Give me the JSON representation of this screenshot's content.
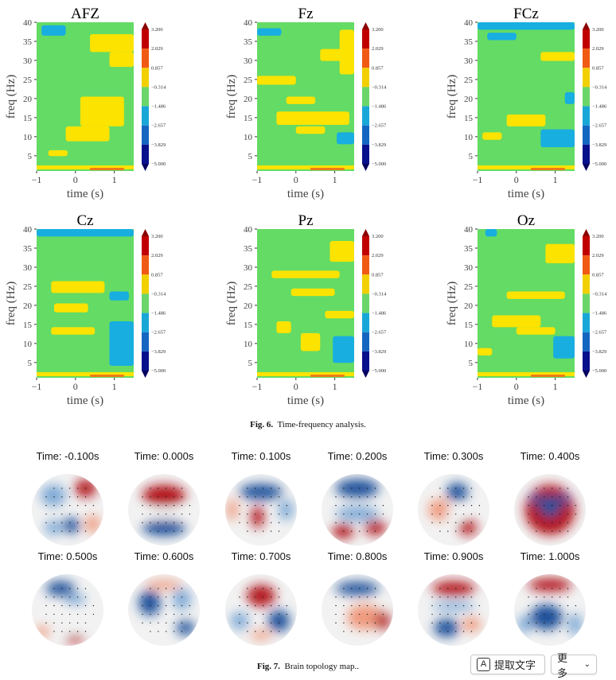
{
  "figure6": {
    "caption_label": "Fig. 6.",
    "caption_text": "Time-frequency analysis.",
    "chart_data": [
      {
        "type": "heatmap",
        "title": "AFZ",
        "xlabel": "time (s)",
        "ylabel": "freq (Hz)",
        "xlim": [
          -1,
          1.5
        ],
        "ylim": [
          1,
          40
        ],
        "xticks": [
          "−1",
          "0",
          "1"
        ],
        "yticks": [
          "5",
          "10",
          "15",
          "20",
          "25",
          "30",
          "35",
          "40"
        ]
      },
      {
        "type": "heatmap",
        "title": "Fz",
        "xlabel": "time (s)",
        "ylabel": "freq (Hz)",
        "xlim": [
          -1,
          1.5
        ],
        "ylim": [
          1,
          40
        ],
        "xticks": [
          "−1",
          "0",
          "1"
        ],
        "yticks": [
          "5",
          "10",
          "15",
          "20",
          "25",
          "30",
          "35",
          "40"
        ]
      },
      {
        "type": "heatmap",
        "title": "FCz",
        "xlabel": "time (s)",
        "ylabel": "freq (Hz)",
        "xlim": [
          -1,
          1.5
        ],
        "ylim": [
          1,
          40
        ],
        "xticks": [
          "−1",
          "0",
          "1"
        ],
        "yticks": [
          "5",
          "10",
          "15",
          "20",
          "25",
          "30",
          "35",
          "40"
        ]
      },
      {
        "type": "heatmap",
        "title": "Cz",
        "xlabel": "time (s)",
        "ylabel": "freq (Hz)",
        "xlim": [
          -1,
          1.5
        ],
        "ylim": [
          1,
          40
        ],
        "xticks": [
          "−1",
          "0",
          "1"
        ],
        "yticks": [
          "5",
          "10",
          "15",
          "20",
          "25",
          "30",
          "35",
          "40"
        ]
      },
      {
        "type": "heatmap",
        "title": "Pz",
        "xlabel": "time (s)",
        "ylabel": "freq (Hz)",
        "xlim": [
          -1,
          1.5
        ],
        "ylim": [
          1,
          40
        ],
        "xticks": [
          "−1",
          "0",
          "1"
        ],
        "yticks": [
          "5",
          "10",
          "15",
          "20",
          "25",
          "30",
          "35",
          "40"
        ]
      },
      {
        "type": "heatmap",
        "title": "Oz",
        "xlabel": "time (s)",
        "ylabel": "freq (Hz)",
        "xlim": [
          -1,
          1.5
        ],
        "ylim": [
          1,
          40
        ],
        "xticks": [
          "−1",
          "0",
          "1"
        ],
        "yticks": [
          "5",
          "10",
          "15",
          "20",
          "25",
          "30",
          "35",
          "40"
        ]
      }
    ],
    "colorbar": {
      "levels": [
        "3.200",
        "2.029",
        "0.857",
        "−0.314",
        "−1.486",
        "−2.657",
        "−3.829",
        "−5.000"
      ],
      "colors": [
        "#c00000",
        "#f05a14",
        "#f2d000",
        "#6ad66a",
        "#19a7d8",
        "#1566c0",
        "#08108c"
      ],
      "top_color": "#8b0000",
      "bottom_color": "#05005e"
    },
    "colors": {
      "green": "#64db64",
      "yellow": "#fde300",
      "cyan": "#18aee0",
      "orange": "#ee7a1a",
      "red": "#d21f10"
    }
  },
  "figure7": {
    "caption_label": "Fig. 7.",
    "caption_text": "Brain topology map..",
    "maps": [
      {
        "label": "Time: -0.100s",
        "scheme": "a"
      },
      {
        "label": "Time: 0.000s",
        "scheme": "b"
      },
      {
        "label": "Time: 0.100s",
        "scheme": "c"
      },
      {
        "label": "Time: 0.200s",
        "scheme": "d"
      },
      {
        "label": "Time: 0.300s",
        "scheme": "e"
      },
      {
        "label": "Time: 0.400s",
        "scheme": "f"
      },
      {
        "label": "Time: 0.500s",
        "scheme": "g"
      },
      {
        "label": "Time: 0.600s",
        "scheme": "h"
      },
      {
        "label": "Time: 0.700s",
        "scheme": "i"
      },
      {
        "label": "Time: 0.800s",
        "scheme": "j"
      },
      {
        "label": "Time: 0.900s",
        "scheme": "k"
      },
      {
        "label": "Time: 1.000s",
        "scheme": "l"
      }
    ]
  },
  "toolbar": {
    "extract_icon": "A",
    "extract_label": "提取文字",
    "more_label": "更多",
    "more_chevron": "⌄"
  }
}
